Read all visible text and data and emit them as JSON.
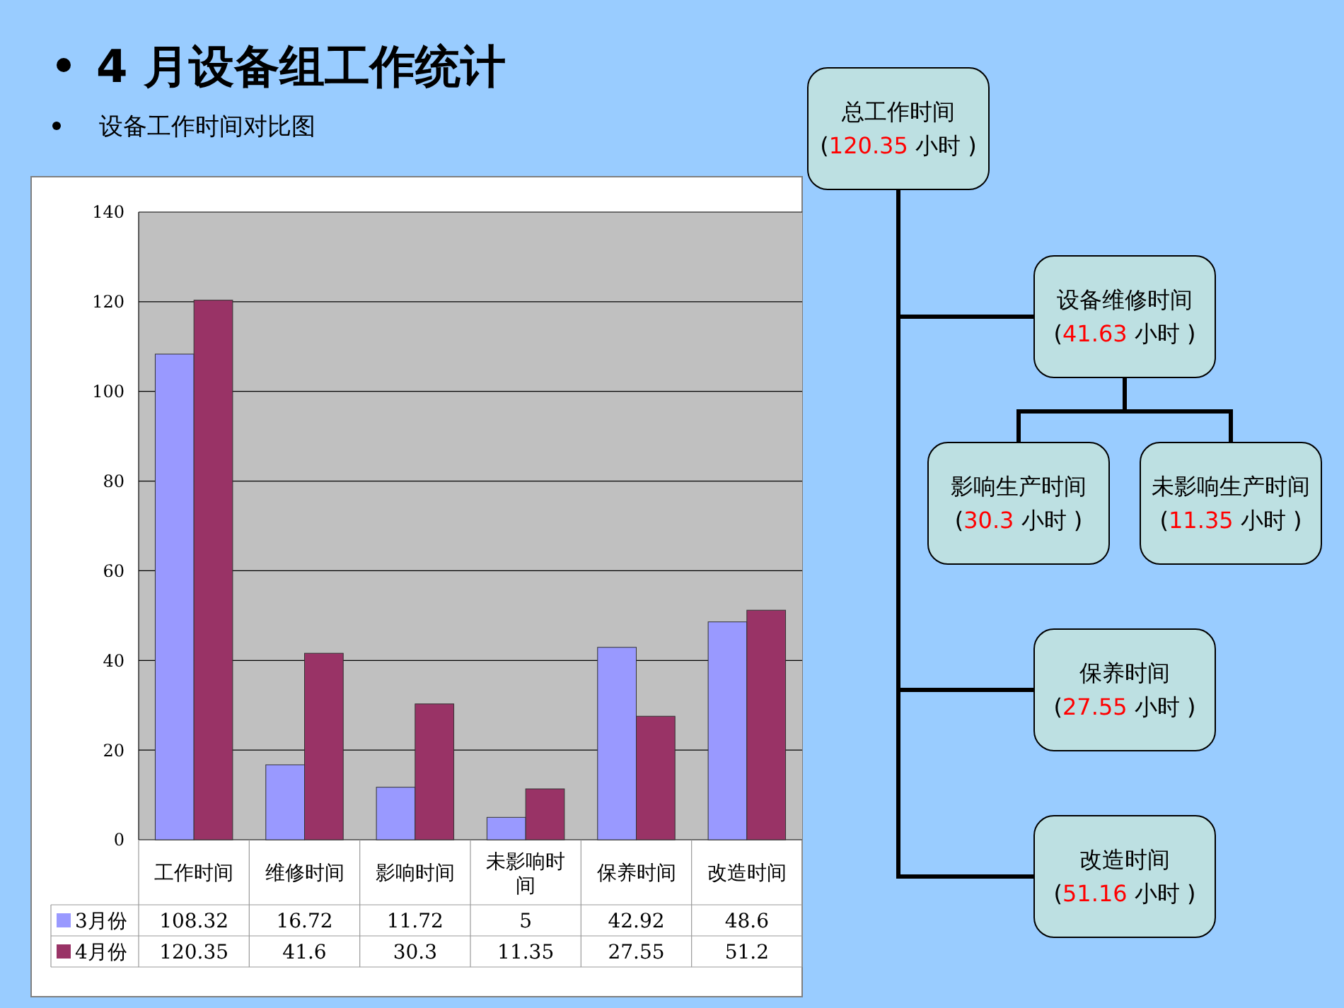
{
  "chart_data": [
    {
      "type": "bar",
      "title": "4 月设备组工作统计",
      "subtitle": "设备工作时间对比图",
      "categories": [
        "工作时间",
        "维修时间",
        "影响时间",
        "未影响时间",
        "保养时间",
        "改造时间"
      ],
      "series": [
        {
          "name": "3月份",
          "color": "#9999ff",
          "values": [
            108.32,
            16.72,
            11.72,
            5,
            42.92,
            48.6
          ]
        },
        {
          "name": "4月份",
          "color": "#993366",
          "values": [
            120.35,
            41.6,
            30.3,
            11.35,
            27.55,
            51.2
          ]
        }
      ],
      "ylim": [
        0,
        140
      ],
      "yticks": [
        0,
        20,
        40,
        60,
        80,
        100,
        120,
        140
      ],
      "grid": "y",
      "data_labels": true,
      "legend": "bottom"
    },
    {
      "type": "other",
      "annotations": [
        "总工作时间 (120.35 小时 )",
        "设备维修时间 (41.63 小时 )",
        "影响生产时间 (30.3 小时 )",
        "未影响生产时间 (11.35 小时 )",
        "保养时间 (27.55 小时 )",
        "改造时间 (51.16 小时 )"
      ]
    }
  ]
}
